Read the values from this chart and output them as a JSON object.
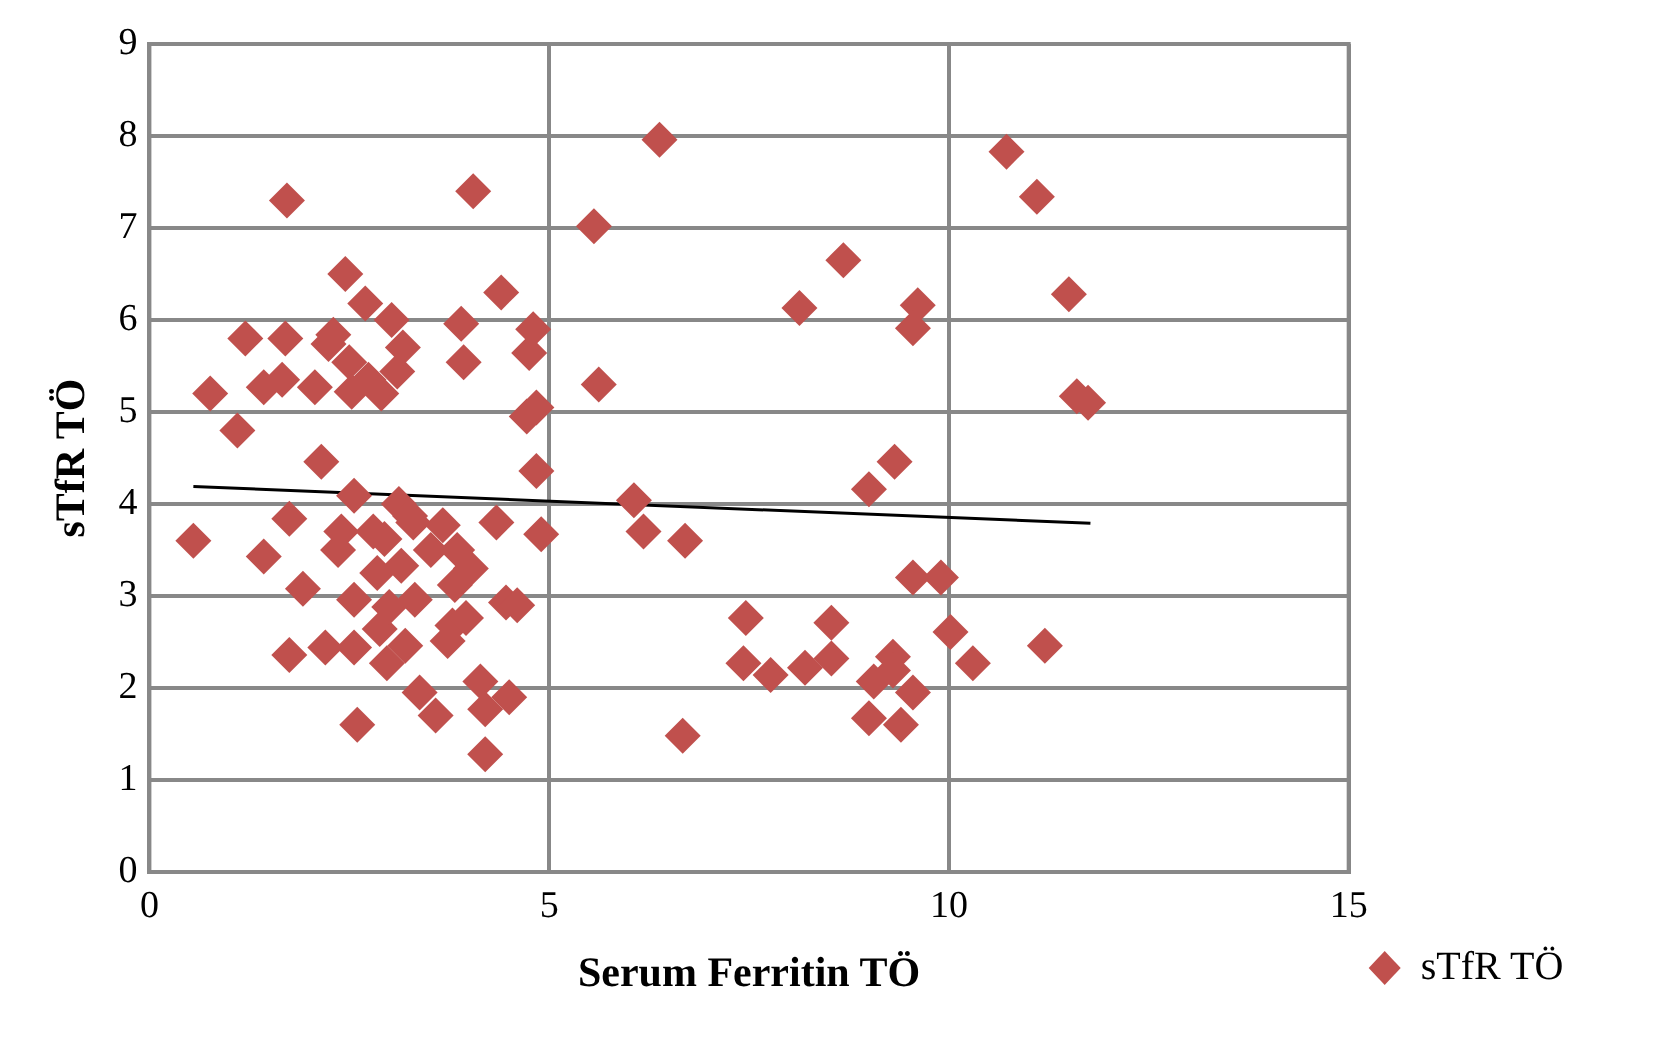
{
  "chart_data": {
    "type": "scatter",
    "xlabel": "Serum Ferritin TÖ",
    "ylabel": "sTfR TÖ",
    "xlim": [
      0,
      15
    ],
    "xticks": [
      0,
      5,
      10,
      15
    ],
    "ylim": [
      0,
      9
    ],
    "yticks": [
      0,
      1,
      2,
      3,
      4,
      5,
      6,
      7,
      8,
      9
    ],
    "grid": true,
    "legend": "bottom right",
    "series": [
      {
        "name": "sTfR TÖ",
        "color": "#c0504d",
        "marker": "diamond",
        "x": [
          0.55,
          0.76,
          1.1,
          1.2,
          1.43,
          1.43,
          1.72,
          1.75,
          1.75,
          1.66,
          1.7,
          1.92,
          2.07,
          2.15,
          2.2,
          2.24,
          2.3,
          2.36,
          2.45,
          2.4,
          2.5,
          2.56,
          2.53,
          2.56,
          2.56,
          2.6,
          2.7,
          2.74,
          2.8,
          2.85,
          2.88,
          2.9,
          2.94,
          2.97,
          3.0,
          3.03,
          3.1,
          3.12,
          3.15,
          3.17,
          3.2,
          3.26,
          3.3,
          3.32,
          3.38,
          3.52,
          3.58,
          3.67,
          3.73,
          3.79,
          3.82,
          3.85,
          3.9,
          3.93,
          3.96,
          4.02,
          4.05,
          4.14,
          4.2,
          4.2,
          4.34,
          4.4,
          4.46,
          4.5,
          4.6,
          4.72,
          4.75,
          4.8,
          4.84,
          4.9,
          4.84,
          6.38,
          5.56,
          5.62,
          8.68,
          8.13,
          9.61,
          9.55,
          10.72,
          11.1,
          11.5,
          11.6,
          11.74,
          9.32,
          9.0,
          6.06,
          6.18,
          6.7,
          9.55,
          9.9,
          7.46,
          8.53,
          10.02,
          11.2,
          7.43,
          7.77,
          8.2,
          8.53,
          10.3,
          9.3,
          9.06,
          9.55,
          9.3,
          9.0,
          9.4,
          6.67
        ],
        "values": [
          3.6,
          5.2,
          4.8,
          5.8,
          3.43,
          5.27,
          7.3,
          3.84,
          2.36,
          5.35,
          5.8,
          3.08,
          5.27,
          4.46,
          2.44,
          5.74,
          5.84,
          3.5,
          6.5,
          3.7,
          5.54,
          4.09,
          5.22,
          2.96,
          2.44,
          1.6,
          6.18,
          5.35,
          3.7,
          3.25,
          2.64,
          5.2,
          3.62,
          2.27,
          2.88,
          6.0,
          5.44,
          4.0,
          3.33,
          5.7,
          2.46,
          3.87,
          3.8,
          2.96,
          1.95,
          3.5,
          1.7,
          3.77,
          2.51,
          2.68,
          3.12,
          3.5,
          5.96,
          5.54,
          2.76,
          3.3,
          7.4,
          2.07,
          1.28,
          1.77,
          3.8,
          6.3,
          2.93,
          1.9,
          2.9,
          4.95,
          5.64,
          5.9,
          4.36,
          3.67,
          5.05,
          7.96,
          7.02,
          5.3,
          6.65,
          6.13,
          6.16,
          5.91,
          7.83,
          7.34,
          6.28,
          5.17,
          5.1,
          4.46,
          4.16,
          4.04,
          3.7,
          3.6,
          3.2,
          3.2,
          2.76,
          2.71,
          2.61,
          2.46,
          2.27,
          2.14,
          2.22,
          2.32,
          2.27,
          2.34,
          2.07,
          1.95,
          2.19,
          1.67,
          1.6,
          1.48
        ]
      },
      {
        "type": "line",
        "color": "#000000",
        "marker": "none",
        "line_style": "solid",
        "x": [
          0.55,
          11.77
        ],
        "values": [
          4.19,
          3.79
        ]
      }
    ]
  }
}
